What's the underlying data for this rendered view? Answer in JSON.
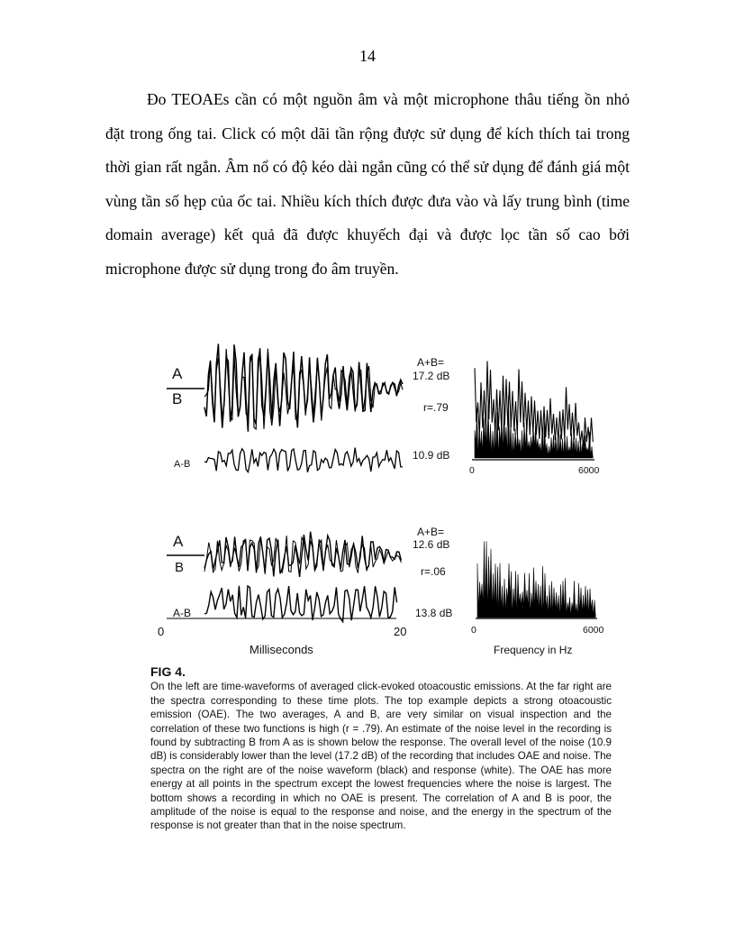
{
  "page_number": "14",
  "paragraph": "Đo TEOAEs cần có một nguồn âm và một microphone thâu tiếng ồn nhỏ đặt trong ống tai. Click có một dãi tần rộng được sử dụng để kích thích tai trong thời gian rất ngắn. Âm nổ có độ kéo dài ngắn cũng có thể sử dụng để đánh giá một vùng tần số hẹp của ốc tai. Nhiều kích thích được đưa vào và lấy trung bình (time domain average) kết quả đã được khuyếch đại và được lọc tần số cao bởi microphone được sử dụng trong đo âm truyền.",
  "figure": {
    "top": {
      "label_a": "A",
      "label_b": "B",
      "label_ab": "A-B",
      "sum_label": "A+B=",
      "sum_value": "17.2 dB",
      "correlation": "r=.79",
      "noise_level": "10.9 dB",
      "spectrum_axis_min": "0",
      "spectrum_axis_max": "6000"
    },
    "bottom": {
      "label_a": "A",
      "label_b": "B",
      "label_ab": "A-B",
      "sum_label": "A+B=",
      "sum_value": "12.6 dB",
      "correlation": "r=.06",
      "noise_level": "13.8 dB",
      "time_axis_min": "0",
      "time_axis_max": "20",
      "spectrum_axis_min": "0",
      "spectrum_axis_max": "6000"
    },
    "time_axis_label": "Milliseconds",
    "frequency_axis_label": "Frequency in Hz",
    "caption_title": "FIG 4.",
    "caption_text": "On the left are time-waveforms of averaged click-evoked otoacoustic emissions. At the far right are the spectra corresponding to these time plots. The top example depicts a strong otoacoustic emission (OAE). The two averages, A and B, are very similar on visual inspection and the correlation of these two functions is high (r = .79). An estimate of the noise level in the recording is found by subtracting B from A as is shown below the response. The overall level of the noise (10.9 dB) is considerably lower than the level (17.2 dB) of the recording that includes OAE and noise. The spectra on the right are of the noise waveform (black) and response (white). The OAE has more energy at all points in the spectrum except the lowest frequencies where the noise is largest. The bottom shows a recording in which no OAE is present. The correlation of A and B is poor, the amplitude of the noise is equal to the response and noise, and the energy in the spectrum of the response is not greater than that in the noise spectrum."
  }
}
